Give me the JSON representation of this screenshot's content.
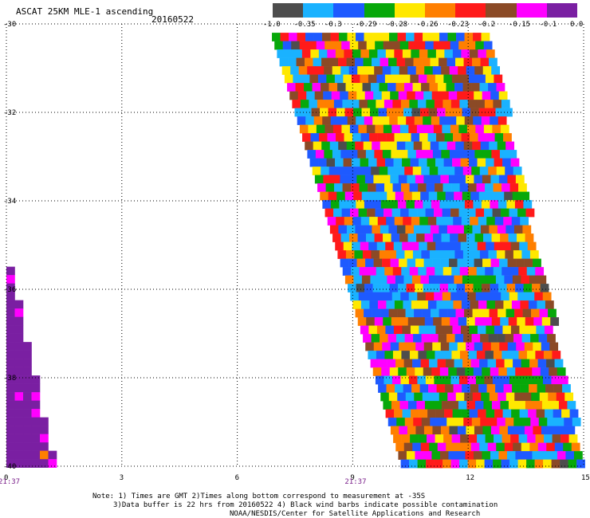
{
  "header": {
    "title": "ASCAT 25KM MLE-1 ascending",
    "date": "20160522"
  },
  "colorbar": {
    "colors": [
      "#4d4d4d",
      "#1ab2ff",
      "#1e5aff",
      "#07a80a",
      "#ffe800",
      "#ff7f00",
      "#ff1a1a",
      "#8b4a26",
      "#ff00ff",
      "#7a1fa2"
    ],
    "tick_labels": [
      "-1.0",
      "-0.35",
      "-0.3",
      "-0.29",
      "-0.28",
      "-0.26",
      "-0.23",
      "-0.2",
      "-0.15",
      "-0.1",
      "0.0"
    ]
  },
  "chart_data": {
    "type": "heatmap",
    "title": "ASCAT 25KM MLE-1 ascending",
    "x_ticks": [
      "0",
      "3",
      "6",
      "9",
      "12",
      "15"
    ],
    "y_ticks": [
      "-30",
      "-32",
      "-34",
      "-36",
      "-38",
      "-40"
    ],
    "xlim": [
      0,
      15
    ],
    "ylim": [
      -40,
      -30
    ],
    "grid": true,
    "swaths": [
      {
        "description": "main ascending swath",
        "top_left_x": 6.9,
        "top_right_x": 12.5,
        "bottom_left_x": 10.3,
        "bottom_right_x": 15.0,
        "y_top": -30.2,
        "y_bottom": -40.0
      },
      {
        "description": "western edge swath",
        "top_x": 0.0,
        "y_top": -35.3,
        "bottom_right_x": 1.2,
        "y_bottom": -40.0
      }
    ],
    "time_labels": [
      {
        "x": 0.0,
        "label": "21:37"
      },
      {
        "x": 9.0,
        "label": "21:37"
      }
    ]
  },
  "notes": {
    "line1": "Note: 1) Times are GMT 2)Times along bottom correspond to measurement at -35S",
    "line2": "3)Data buffer is 22 hrs from 20160522 4) Black wind barbs indicate possible contamination",
    "line3": "NOAA/NESDIS/Center for Satellite Applications and Research"
  }
}
